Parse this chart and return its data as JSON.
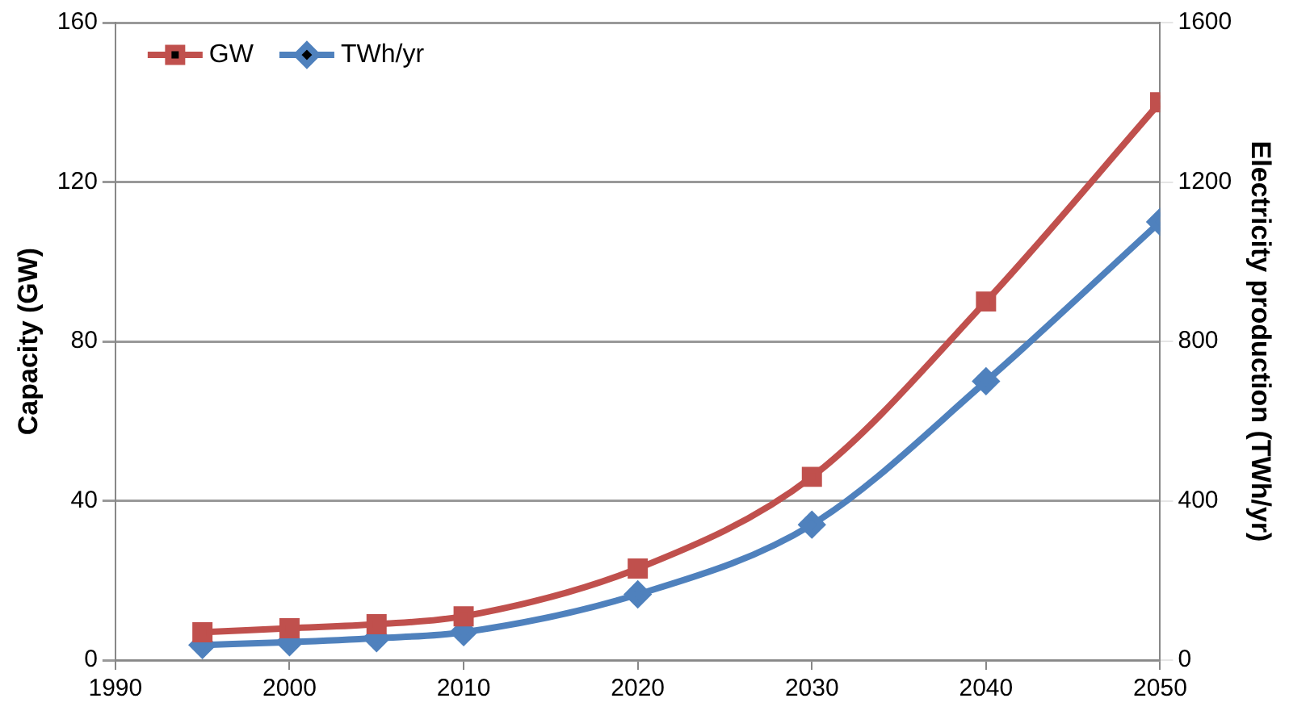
{
  "chart_data": {
    "type": "line",
    "xlabel": null,
    "ylabel": "Capacity (GW)",
    "y2label": "Electricity production (TWh/yr)",
    "x": [
      1995,
      2000,
      2005,
      2010,
      2020,
      2030,
      2040,
      2050
    ],
    "series": [
      {
        "name": "GW",
        "color": "#c0504d",
        "marker": "square",
        "values": [
          7,
          8,
          9,
          11,
          23,
          46,
          90,
          140
        ]
      },
      {
        "name": "TWh/yr",
        "color": "#4f81bd",
        "marker": "diamond",
        "axis": "y2",
        "values": [
          38,
          45,
          55,
          70,
          165,
          340,
          700,
          1100
        ]
      }
    ],
    "xlim": [
      1990,
      2050
    ],
    "xticks": [
      1990,
      2000,
      2010,
      2020,
      2030,
      2040,
      2050
    ],
    "ylim": [
      0,
      160
    ],
    "yticks": [
      0,
      40,
      80,
      120,
      160
    ],
    "y2lim": [
      0,
      1600
    ],
    "y2ticks": [
      0,
      400,
      800,
      1200,
      1600
    ],
    "grid": "y",
    "legend": "top left"
  }
}
